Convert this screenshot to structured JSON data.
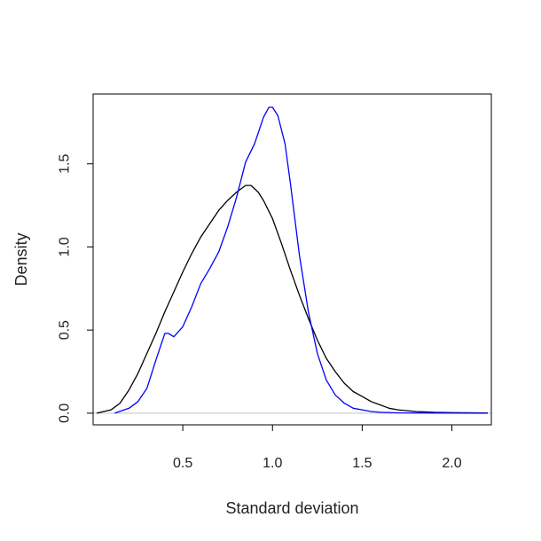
{
  "chart_data": {
    "type": "line",
    "title": "",
    "xlabel": "Standard deviation",
    "ylabel": "Density",
    "xlim": [
      0.0,
      2.22
    ],
    "ylim": [
      -0.07,
      1.92
    ],
    "x_ticks": [
      0.5,
      1.0,
      1.5,
      2.0
    ],
    "x_tick_labels": [
      "0.5",
      "1.0",
      "1.5",
      "2.0"
    ],
    "y_ticks": [
      0.0,
      0.5,
      1.0,
      1.5
    ],
    "y_tick_labels": [
      "0.0",
      "0.5",
      "1.0",
      "1.5"
    ],
    "grid": false,
    "baseline": {
      "y": 0.0,
      "color": "#c0c0c0"
    },
    "series": [
      {
        "color": "#000000",
        "x": [
          0.02,
          0.1,
          0.15,
          0.2,
          0.25,
          0.3,
          0.35,
          0.4,
          0.45,
          0.5,
          0.55,
          0.6,
          0.65,
          0.7,
          0.75,
          0.8,
          0.85,
          0.88,
          0.92,
          0.95,
          1.0,
          1.05,
          1.1,
          1.15,
          1.2,
          1.25,
          1.3,
          1.35,
          1.4,
          1.45,
          1.5,
          1.55,
          1.6,
          1.65,
          1.7,
          1.8,
          1.9,
          2.0,
          2.2
        ],
        "y": [
          0.0,
          0.02,
          0.06,
          0.14,
          0.24,
          0.36,
          0.48,
          0.61,
          0.73,
          0.85,
          0.96,
          1.06,
          1.14,
          1.22,
          1.28,
          1.33,
          1.37,
          1.37,
          1.33,
          1.28,
          1.17,
          1.02,
          0.86,
          0.71,
          0.57,
          0.44,
          0.33,
          0.25,
          0.18,
          0.13,
          0.1,
          0.07,
          0.05,
          0.03,
          0.02,
          0.01,
          0.005,
          0.003,
          0.001
        ]
      },
      {
        "color": "#0000ff",
        "x": [
          0.12,
          0.2,
          0.25,
          0.3,
          0.35,
          0.4,
          0.42,
          0.45,
          0.5,
          0.55,
          0.6,
          0.65,
          0.7,
          0.75,
          0.8,
          0.85,
          0.9,
          0.95,
          0.98,
          1.0,
          1.03,
          1.07,
          1.1,
          1.15,
          1.2,
          1.25,
          1.3,
          1.35,
          1.4,
          1.45,
          1.5,
          1.55,
          1.6,
          1.7,
          1.9,
          2.2
        ],
        "y": [
          0.0,
          0.03,
          0.07,
          0.15,
          0.32,
          0.48,
          0.48,
          0.46,
          0.52,
          0.64,
          0.78,
          0.87,
          0.97,
          1.12,
          1.3,
          1.51,
          1.62,
          1.78,
          1.84,
          1.84,
          1.79,
          1.62,
          1.38,
          0.95,
          0.61,
          0.36,
          0.2,
          0.11,
          0.06,
          0.03,
          0.02,
          0.01,
          0.005,
          0.002,
          0.001,
          0.0
        ]
      }
    ]
  }
}
